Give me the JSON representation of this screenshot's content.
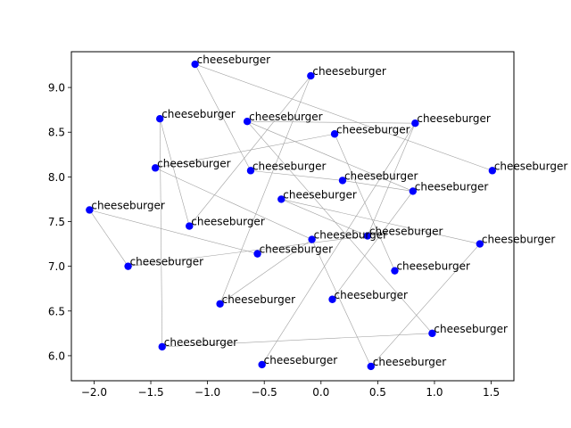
{
  "chart_data": {
    "type": "scatter",
    "title": "",
    "xlabel": "",
    "ylabel": "",
    "xlim": [
      -2.2,
      1.7
    ],
    "ylim": [
      5.72,
      9.4
    ],
    "xticks": [
      -2.0,
      -1.5,
      -1.0,
      -0.5,
      0.0,
      0.5,
      1.0,
      1.5
    ],
    "xtick_labels": [
      "−2.0",
      "−1.5",
      "−1.0",
      "−0.5",
      "0.0",
      "0.5",
      "1.0",
      "1.5"
    ],
    "yticks": [
      6.0,
      6.5,
      7.0,
      7.5,
      8.0,
      8.5,
      9.0
    ],
    "ytick_labels": [
      "6.0",
      "6.5",
      "7.0",
      "7.5",
      "8.0",
      "8.5",
      "9.0"
    ],
    "grid": false,
    "point_color": "#0000ff",
    "edge_color": "#a0a0a0",
    "points": [
      {
        "x": -1.11,
        "y": 9.26,
        "label": "cheeseburger"
      },
      {
        "x": -0.09,
        "y": 9.13,
        "label": "cheeseburger"
      },
      {
        "x": -1.42,
        "y": 8.65,
        "label": "cheeseburger"
      },
      {
        "x": -0.65,
        "y": 8.62,
        "label": "cheeseburger"
      },
      {
        "x": 0.83,
        "y": 8.6,
        "label": "cheeseburger"
      },
      {
        "x": 0.12,
        "y": 8.48,
        "label": "cheeseburger"
      },
      {
        "x": -1.46,
        "y": 8.1,
        "label": "cheeseburger"
      },
      {
        "x": -0.62,
        "y": 8.07,
        "label": "cheeseburger"
      },
      {
        "x": 1.51,
        "y": 8.07,
        "label": "cheeseburger"
      },
      {
        "x": 0.19,
        "y": 7.96,
        "label": "cheeseburger"
      },
      {
        "x": 0.81,
        "y": 7.84,
        "label": "cheeseburger"
      },
      {
        "x": -0.35,
        "y": 7.75,
        "label": "cheeseburger"
      },
      {
        "x": -2.04,
        "y": 7.63,
        "label": "cheeseburger"
      },
      {
        "x": -1.16,
        "y": 7.45,
        "label": "cheeseburger"
      },
      {
        "x": 0.41,
        "y": 7.34,
        "label": "cheeseburger"
      },
      {
        "x": -0.08,
        "y": 7.3,
        "label": "cheeseburger"
      },
      {
        "x": 1.4,
        "y": 7.25,
        "label": "cheeseburger"
      },
      {
        "x": -0.56,
        "y": 7.14,
        "label": "cheeseburger"
      },
      {
        "x": -1.7,
        "y": 7.0,
        "label": "cheeseburger"
      },
      {
        "x": 0.65,
        "y": 6.95,
        "label": "cheeseburger"
      },
      {
        "x": 0.1,
        "y": 6.63,
        "label": "cheeseburger"
      },
      {
        "x": -0.89,
        "y": 6.58,
        "label": "cheeseburger"
      },
      {
        "x": 0.98,
        "y": 6.25,
        "label": "cheeseburger"
      },
      {
        "x": -1.4,
        "y": 6.1,
        "label": "cheeseburger"
      },
      {
        "x": -0.52,
        "y": 5.9,
        "label": "cheeseburger"
      },
      {
        "x": 0.44,
        "y": 5.88,
        "label": "cheeseburger"
      }
    ],
    "edges": [
      [
        0,
        7
      ],
      [
        0,
        8
      ],
      [
        1,
        13
      ],
      [
        1,
        21
      ],
      [
        2,
        13
      ],
      [
        2,
        23
      ],
      [
        3,
        4
      ],
      [
        3,
        10
      ],
      [
        3,
        22
      ],
      [
        4,
        14
      ],
      [
        5,
        6
      ],
      [
        5,
        19
      ],
      [
        6,
        15
      ],
      [
        7,
        9
      ],
      [
        9,
        10
      ],
      [
        11,
        16
      ],
      [
        11,
        14
      ],
      [
        12,
        17
      ],
      [
        12,
        18
      ],
      [
        18,
        14
      ],
      [
        4,
        24
      ],
      [
        10,
        20
      ],
      [
        25,
        16
      ],
      [
        23,
        22
      ],
      [
        21,
        15
      ],
      [
        25,
        15
      ]
    ]
  }
}
